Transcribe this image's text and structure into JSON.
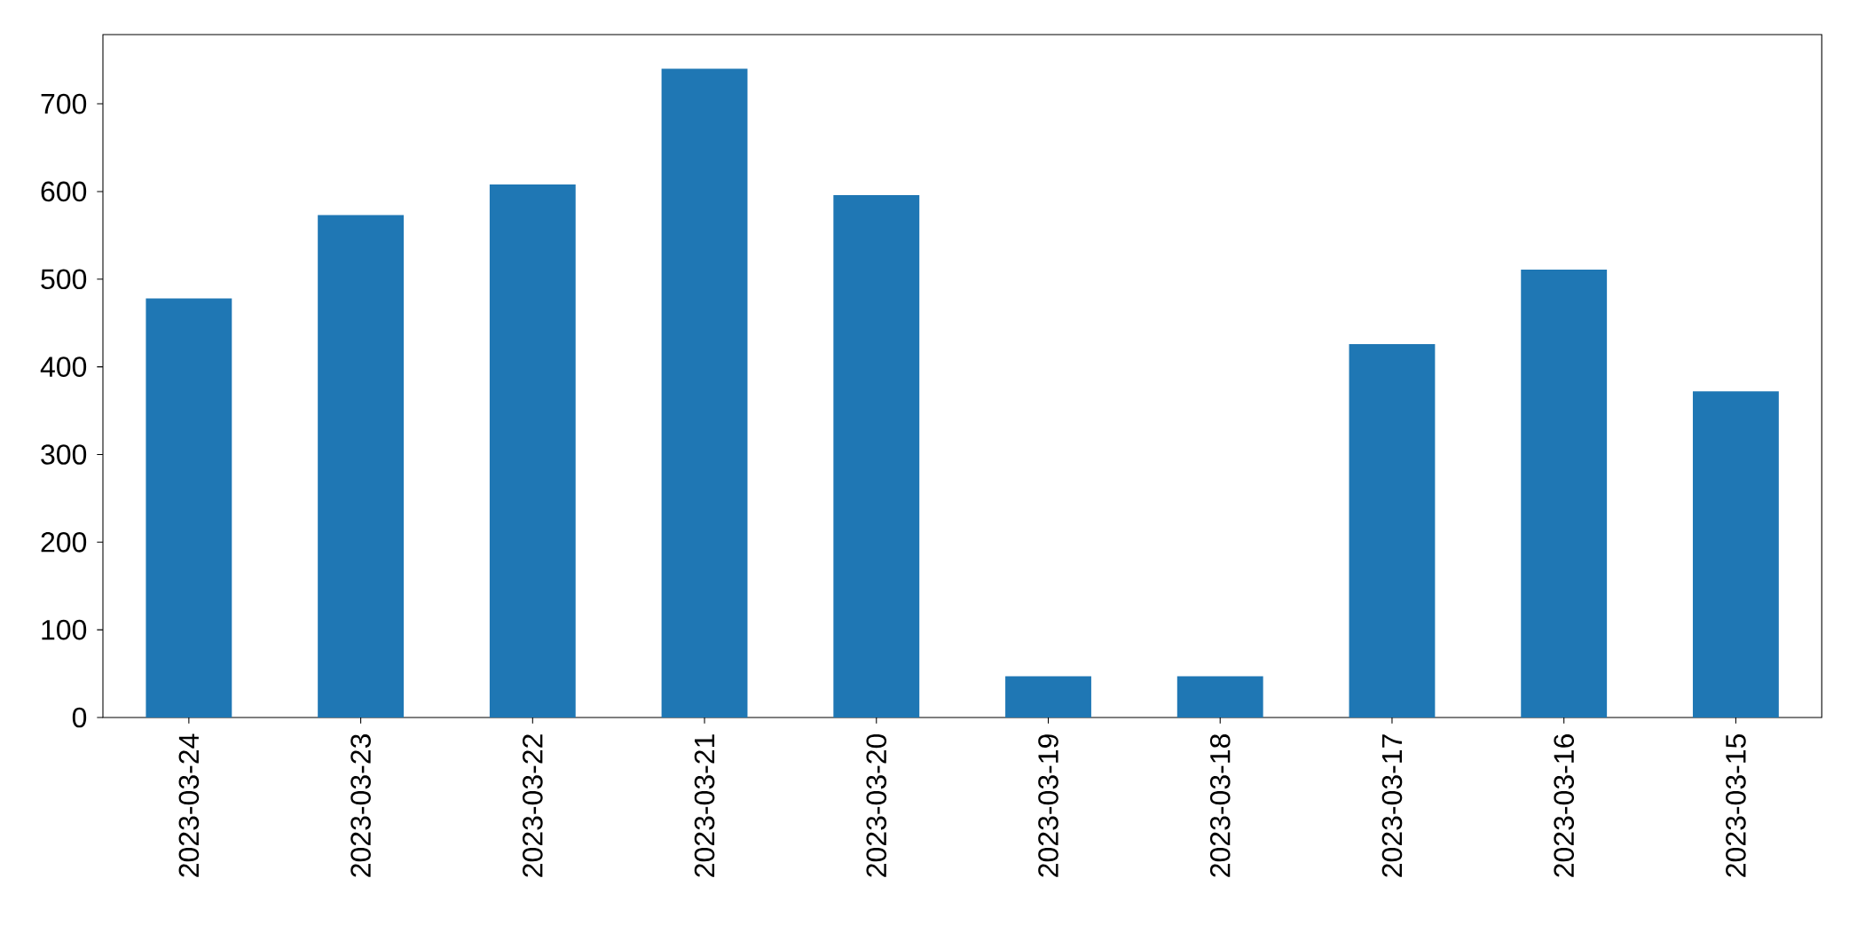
{
  "chart_data": {
    "type": "bar",
    "categories": [
      "2023-03-24",
      "2023-03-23",
      "2023-03-22",
      "2023-03-21",
      "2023-03-20",
      "2023-03-19",
      "2023-03-18",
      "2023-03-17",
      "2023-03-16",
      "2023-03-15"
    ],
    "values": [
      478,
      573,
      608,
      740,
      596,
      47,
      47,
      426,
      511,
      372
    ],
    "color": "#1f77b4",
    "ylim": [
      0,
      779
    ],
    "yticks": [
      0,
      100,
      200,
      300,
      400,
      500,
      600,
      700
    ]
  }
}
